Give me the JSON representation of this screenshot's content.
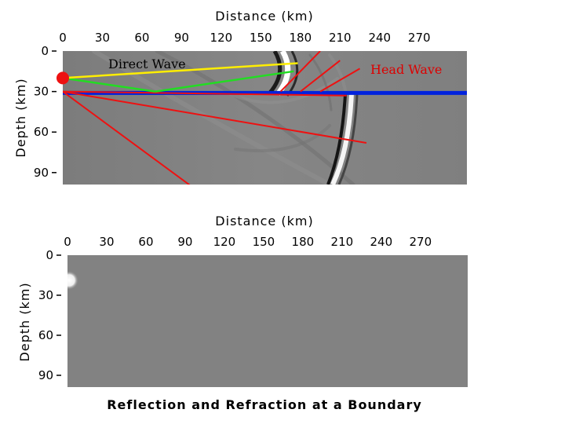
{
  "panels": [
    {
      "id": "top",
      "x_title": "Distance (km)",
      "y_title": "Depth (km)",
      "x_ticks": [
        0,
        30,
        60,
        90,
        120,
        150,
        180,
        210,
        240,
        270
      ],
      "y_ticks": [
        0,
        30,
        60,
        90
      ],
      "x_range": [
        0,
        300
      ],
      "y_range": [
        0,
        100
      ]
    },
    {
      "id": "bottom",
      "x_title": "Distance (km)",
      "y_title": "Depth (km)",
      "x_ticks": [
        0,
        30,
        60,
        90,
        120,
        150,
        180,
        210,
        240,
        270
      ],
      "y_ticks": [
        0,
        30,
        60,
        90
      ],
      "x_range": [
        0,
        300
      ],
      "y_range": [
        0,
        100
      ]
    }
  ],
  "boundary_depth_km": 31,
  "source": {
    "x": 0,
    "y": 20,
    "color": "#ee1111"
  },
  "direct_ray": {
    "from": [
      0,
      20
    ],
    "to": [
      178,
      9
    ],
    "color": "#ffee00"
  },
  "reflected_ray": {
    "from": [
      0,
      20
    ],
    "via": [
      70,
      30
    ],
    "to": [
      175,
      15
    ],
    "color": "#22dd22"
  },
  "head_wave_rays": {
    "color": "#ee1111",
    "boundary_segment": {
      "from": [
        0,
        30
      ],
      "to": [
        215,
        33
      ]
    },
    "risers": [
      {
        "from": [
          165,
          30
        ],
        "to": [
          195,
          0
        ]
      },
      {
        "from": [
          180,
          30
        ],
        "to": [
          210,
          7
        ]
      },
      {
        "from": [
          195,
          30
        ],
        "to": [
          225,
          13
        ]
      }
    ]
  },
  "refracted_rays": {
    "color": "#ee1111",
    "rays": [
      {
        "from": [
          0,
          30
        ],
        "to": [
          230,
          68
        ]
      },
      {
        "from": [
          0,
          30
        ],
        "to": [
          100,
          102
        ]
      }
    ]
  },
  "boundary_color": "#0022dd",
  "labels": {
    "direct_wave": "Direct Wave",
    "head_wave": "Head Wave",
    "direct_wave_color": "#000000",
    "head_wave_color": "#dd0000"
  },
  "caption": "Reflection and Refraction at a Boundary"
}
